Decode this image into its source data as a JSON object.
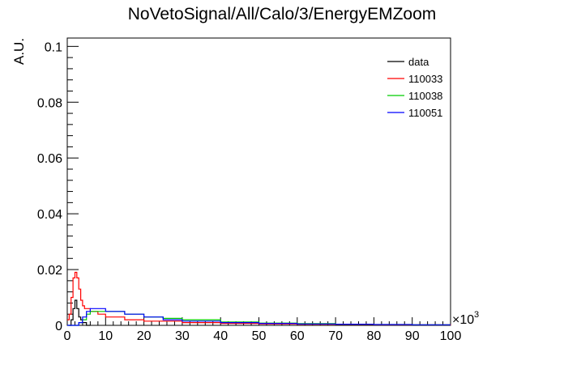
{
  "chart_data": {
    "type": "line",
    "title": "NoVetoSignal/All/Calo/3/EnergyEMZoom",
    "xlabel": "",
    "ylabel": "A.U.",
    "x_multiplier_label": "×10",
    "x_multiplier_exp": "3",
    "xlim": [
      0,
      100
    ],
    "ylim": [
      0,
      0.103
    ],
    "xticks": [
      0,
      10,
      20,
      30,
      40,
      50,
      60,
      70,
      80,
      90,
      100
    ],
    "xtick_labels": [
      "0",
      "10",
      "20",
      "30",
      "40",
      "50",
      "60",
      "70",
      "80",
      "90",
      "100"
    ],
    "yticks": [
      0,
      0.02,
      0.04,
      0.06,
      0.08,
      0.1
    ],
    "ytick_labels": [
      "0",
      "0.02",
      "0.04",
      "0.06",
      "0.08",
      "0.1"
    ],
    "grid": false,
    "legend_position": "top-right",
    "series": [
      {
        "name": "data",
        "color": "#000000",
        "x": [
          0.5,
          1.0,
          1.5,
          2.0,
          2.5,
          3.0,
          3.5,
          4.0,
          4.5,
          5.0,
          6.0
        ],
        "y": [
          0.0,
          0.002,
          0.006,
          0.009,
          0.006,
          0.003,
          0.002,
          0.001,
          0.001,
          0.0,
          0.0
        ]
      },
      {
        "name": "110033",
        "color": "#ff0000",
        "x": [
          0,
          0.5,
          1.0,
          1.5,
          2.0,
          2.5,
          3.0,
          3.5,
          4.0,
          4.5,
          5.0,
          6.0,
          8.0,
          10,
          15,
          20,
          30,
          40,
          50,
          60,
          70,
          80,
          90,
          100
        ],
        "y": [
          0.002,
          0.004,
          0.01,
          0.017,
          0.019,
          0.017,
          0.013,
          0.009,
          0.007,
          0.006,
          0.006,
          0.005,
          0.004,
          0.003,
          0.002,
          0.0015,
          0.001,
          0.0007,
          0.0005,
          0.0004,
          0.0003,
          0.0002,
          0.0002,
          0.0001
        ]
      },
      {
        "name": "110038",
        "color": "#00cc00",
        "x": [
          0,
          2,
          3,
          4,
          5,
          6,
          8,
          10,
          15,
          20,
          25,
          30,
          40,
          50,
          60,
          70,
          80,
          90,
          100
        ],
        "y": [
          0.0,
          0.0,
          0.001,
          0.002,
          0.004,
          0.005,
          0.005,
          0.005,
          0.004,
          0.003,
          0.0025,
          0.002,
          0.0012,
          0.0008,
          0.0006,
          0.0004,
          0.0003,
          0.0002,
          0.0002
        ]
      },
      {
        "name": "110051",
        "color": "#0000ff",
        "x": [
          0,
          2,
          3,
          4,
          5,
          6,
          8,
          10,
          15,
          20,
          25,
          30,
          40,
          50,
          60,
          70,
          80,
          90,
          100
        ],
        "y": [
          0.0,
          0.0,
          0.001,
          0.003,
          0.005,
          0.006,
          0.006,
          0.005,
          0.004,
          0.003,
          0.002,
          0.0015,
          0.001,
          0.0007,
          0.0005,
          0.0004,
          0.0003,
          0.0002,
          0.0002
        ]
      }
    ]
  }
}
